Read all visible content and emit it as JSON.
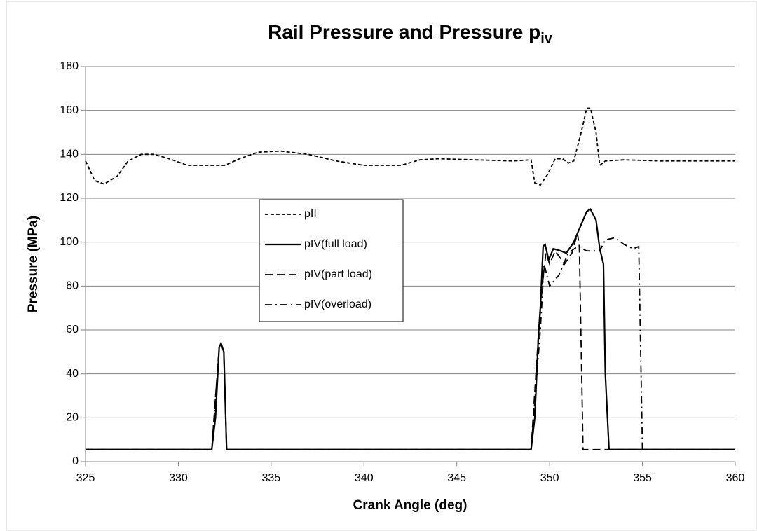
{
  "chart_data": {
    "type": "line",
    "title": "Rail Pressure and Pressure p",
    "title_subscript": "iv",
    "x_label": "Crank Angle (deg)",
    "y_label": "Pressure (MPa)",
    "xlim": [
      325,
      360
    ],
    "xticks": [
      325,
      330,
      335,
      340,
      345,
      350,
      355,
      360
    ],
    "ylim": [
      0,
      180
    ],
    "yticks": [
      0,
      20,
      40,
      60,
      80,
      100,
      120,
      140,
      160,
      180
    ],
    "grid": true,
    "legend": "center-left",
    "series": [
      {
        "name": "pII",
        "color": "#000000",
        "dash": "short",
        "x": [
          325,
          325.5,
          326,
          326.7,
          327.3,
          328,
          328.7,
          329.5,
          330.5,
          332.5,
          333.3,
          334.3,
          335.5,
          337,
          338.5,
          340,
          342,
          343,
          344,
          346,
          348,
          349,
          349.2,
          349.5,
          349.9,
          350.3,
          350.7,
          351,
          351.3,
          351.7,
          352,
          352.2,
          352.5,
          352.7,
          353,
          354,
          356,
          360
        ],
        "values": [
          137,
          128,
          126.5,
          130,
          137,
          140,
          140,
          138,
          135,
          135,
          138,
          141,
          141.5,
          140,
          137,
          135,
          135,
          137.5,
          138,
          137.5,
          137,
          137.5,
          127,
          126,
          131,
          138,
          138,
          136,
          137,
          150,
          161,
          161,
          150,
          135,
          137,
          137.5,
          137,
          137
        ]
      },
      {
        "name": "pIV(full load)",
        "color": "#000000",
        "dash": "solid",
        "x": [
          325,
          331.8,
          332,
          332.2,
          332.3,
          332.45,
          332.6,
          349,
          349.2,
          349.4,
          349.5,
          349.65,
          349.75,
          349.95,
          350.2,
          350.6,
          350.9,
          351.3,
          351.7,
          352,
          352.2,
          352.5,
          352.7,
          352.9,
          353,
          353.2,
          360
        ],
        "values": [
          5.5,
          5.5,
          20,
          52,
          54,
          50,
          5.5,
          5.5,
          20,
          58,
          70,
          98,
          99,
          92,
          97,
          96,
          95,
          100,
          108,
          114,
          115,
          110,
          97,
          90,
          40,
          5.5,
          5.5
        ]
      },
      {
        "name": "pIV(part load)",
        "color": "#000000",
        "dash": "long",
        "x": [
          325,
          331.8,
          332.2,
          332.3,
          332.45,
          332.6,
          349,
          349.4,
          349.6,
          349.8,
          350,
          350.3,
          350.8,
          351.2,
          351.5,
          351.6,
          351.8,
          360
        ],
        "values": [
          5.5,
          5.5,
          52,
          54,
          50,
          5.5,
          5.5,
          58,
          80,
          95,
          90,
          96,
          90,
          95,
          104,
          98,
          5.5,
          5.5
        ]
      },
      {
        "name": "pIV(overload)",
        "color": "#000000",
        "dash": "dashdot",
        "x": [
          325,
          331.8,
          332.2,
          332.3,
          332.45,
          332.6,
          349,
          349.5,
          349.7,
          350,
          350.5,
          351,
          351.5,
          352,
          352.7,
          353,
          353.5,
          354,
          354.5,
          354.8,
          355,
          360
        ],
        "values": [
          5.5,
          5.5,
          52,
          54,
          50,
          5.5,
          5.5,
          60,
          90,
          80,
          85,
          95,
          98,
          96,
          96,
          101,
          102,
          99,
          97,
          98,
          5.5,
          5.5
        ]
      }
    ]
  }
}
